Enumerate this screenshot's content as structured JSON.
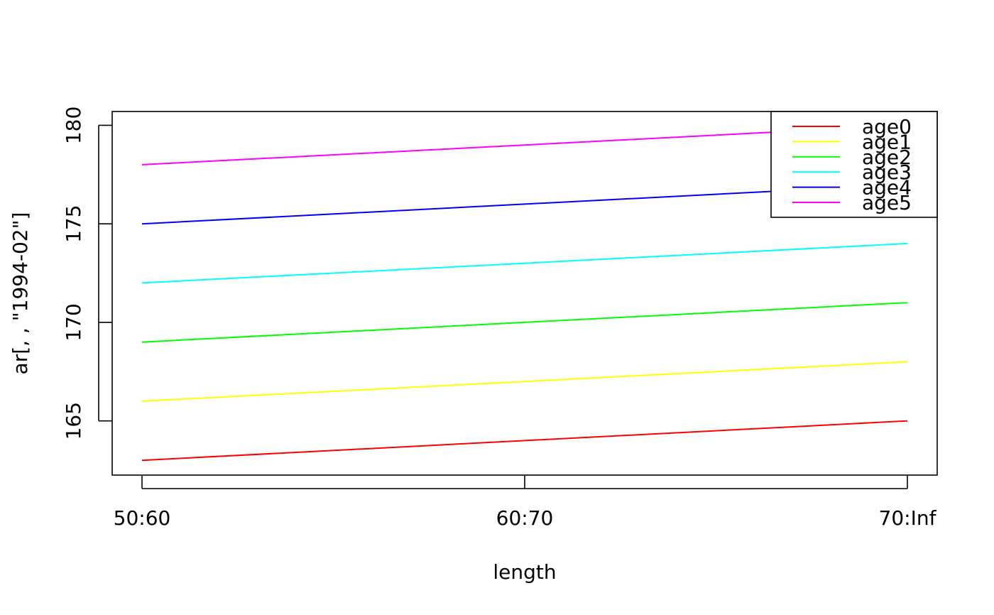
{
  "chart_data": {
    "type": "line",
    "categories": [
      "50:60",
      "60:70",
      "70:Inf"
    ],
    "xlabel": "length",
    "ylabel": "ar[, , \"1994-02\"]",
    "ylim": [
      162.25,
      180.7
    ],
    "yticks": [
      165,
      170,
      175,
      180
    ],
    "grid": false,
    "legend_position": "top-right",
    "series": [
      {
        "name": "age0",
        "color": "#ff0000",
        "values": [
          163,
          164,
          165
        ]
      },
      {
        "name": "age1",
        "color": "#ffff00",
        "values": [
          166,
          167,
          168
        ]
      },
      {
        "name": "age2",
        "color": "#00ff00",
        "values": [
          169,
          170,
          171
        ]
      },
      {
        "name": "age3",
        "color": "#00ffff",
        "values": [
          172,
          173,
          174
        ]
      },
      {
        "name": "age4",
        "color": "#0000ff",
        "values": [
          175,
          176,
          177
        ]
      },
      {
        "name": "age5",
        "color": "#ff00ff",
        "values": [
          178,
          179,
          180
        ]
      }
    ]
  }
}
